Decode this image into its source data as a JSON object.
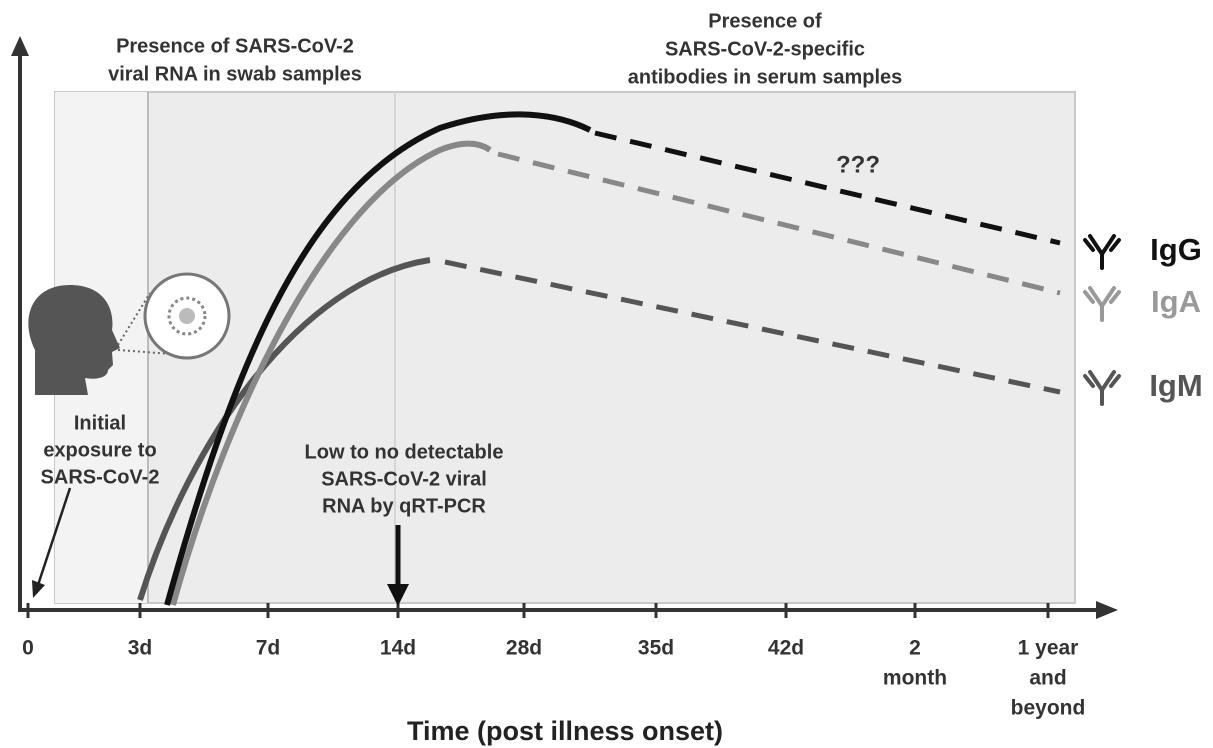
{
  "regions": {
    "swab_label": [
      "Presence of SARS-CoV-2",
      "viral RNA in swab samples"
    ],
    "serum_label": [
      "Presence of",
      "SARS-CoV-2-specific",
      "antibodies in serum samples"
    ]
  },
  "annotations": {
    "question": "???",
    "exposure": [
      "Initial",
      "exposure to",
      "SARS-CoV-2"
    ],
    "low_detection": [
      "Low to no detectable",
      "SARS-CoV-2 viral",
      "RNA by qRT-PCR"
    ]
  },
  "antibodies": [
    "IgG",
    "IgA",
    "IgM"
  ],
  "x_axis": {
    "ticks": [
      [
        "0"
      ],
      [
        "3d"
      ],
      [
        "7d"
      ],
      [
        "14d"
      ],
      [
        "28d"
      ],
      [
        "35d"
      ],
      [
        "42d"
      ],
      [
        "2",
        "month"
      ],
      [
        "1 year",
        "and",
        "beyond"
      ]
    ],
    "title": "Time (post illness onset)"
  }
}
